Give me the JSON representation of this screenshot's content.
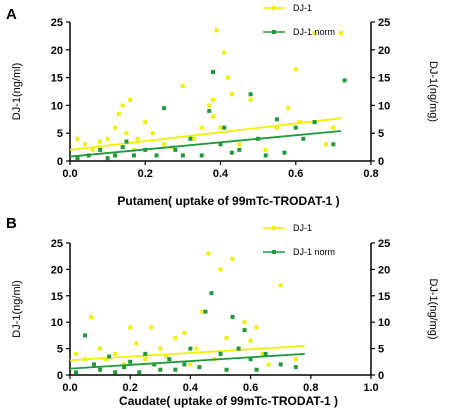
{
  "colors": {
    "dj1": "#f0f000",
    "dj1_norm": "#1e9a3a",
    "axis": "#000000"
  },
  "chart_data": [
    {
      "type": "scatter",
      "panel_label": "A",
      "xlabel": "Putamen( uptake of 99mTc-TRODAT-1 )",
      "ylabel_left": "DJ-1(ng/ml)",
      "ylabel_right": "DJ-1(ng/mg)",
      "xlim": [
        0,
        0.8
      ],
      "ylim": [
        0,
        25
      ],
      "xticks": [
        "0.0",
        "0.2",
        "0.4",
        "0.6",
        "0.8"
      ],
      "yticks": [
        "0",
        "5",
        "10",
        "15",
        "20",
        "25"
      ],
      "legend": [
        "DJ-1",
        "DJ-1 norm"
      ],
      "legend_position": "top-right",
      "series": [
        {
          "name": "DJ-1",
          "x": [
            0.02,
            0.04,
            0.06,
            0.08,
            0.1,
            0.12,
            0.13,
            0.14,
            0.15,
            0.16,
            0.17,
            0.18,
            0.2,
            0.22,
            0.25,
            0.27,
            0.3,
            0.33,
            0.35,
            0.37,
            0.38,
            0.38,
            0.39,
            0.4,
            0.41,
            0.42,
            0.43,
            0.45,
            0.48,
            0.52,
            0.55,
            0.58,
            0.6,
            0.61,
            0.65,
            0.68,
            0.7,
            0.72
          ],
          "y": [
            4.0,
            3.0,
            2.0,
            3.5,
            4.0,
            6.0,
            8.5,
            10.0,
            5.0,
            11.0,
            2.0,
            4.0,
            7.0,
            5.0,
            3.0,
            2.5,
            13.5,
            4.0,
            6.0,
            10.0,
            11.0,
            8.0,
            23.5,
            6.0,
            19.5,
            15.0,
            12.0,
            3.0,
            11.0,
            2.0,
            6.0,
            9.5,
            16.5,
            7.0,
            23.0,
            3.0,
            6.0,
            23.0
          ],
          "trendline": {
            "x": [
              0.0,
              0.72
            ],
            "y": [
              2.0,
              7.7
            ]
          }
        },
        {
          "name": "DJ-1 norm",
          "x": [
            0.02,
            0.05,
            0.08,
            0.1,
            0.12,
            0.14,
            0.15,
            0.17,
            0.2,
            0.23,
            0.25,
            0.28,
            0.3,
            0.32,
            0.35,
            0.37,
            0.38,
            0.4,
            0.41,
            0.43,
            0.45,
            0.48,
            0.5,
            0.52,
            0.55,
            0.57,
            0.6,
            0.62,
            0.65,
            0.7,
            0.73
          ],
          "y": [
            0.5,
            1.0,
            2.0,
            0.5,
            1.0,
            2.5,
            3.5,
            1.0,
            2.0,
            1.0,
            9.5,
            2.0,
            1.0,
            4.0,
            1.0,
            9.0,
            16.0,
            3.0,
            6.0,
            1.5,
            2.0,
            12.0,
            4.0,
            1.0,
            7.5,
            1.5,
            6.0,
            4.0,
            7.0,
            3.0,
            14.5
          ],
          "trendline": {
            "x": [
              0.0,
              0.72
            ],
            "y": [
              0.8,
              5.4
            ]
          }
        }
      ]
    },
    {
      "type": "scatter",
      "panel_label": "B",
      "xlabel": "Caudate( uptake of 99mTc-TRODAT-1 )",
      "ylabel_left": "DJ-1(ng/ml)",
      "ylabel_right": "DJ-1(ng/mg)",
      "xlim": [
        0,
        1.0
      ],
      "ylim": [
        0,
        25
      ],
      "xticks": [
        "0.0",
        "0.2",
        "0.4",
        "0.6",
        "0.8",
        "1.0"
      ],
      "yticks": [
        "0",
        "5",
        "10",
        "15",
        "20",
        "25"
      ],
      "legend": [
        "DJ-1",
        "DJ-1 norm"
      ],
      "legend_position": "top-right",
      "series": [
        {
          "name": "DJ-1",
          "x": [
            0.02,
            0.05,
            0.07,
            0.1,
            0.12,
            0.15,
            0.18,
            0.2,
            0.22,
            0.25,
            0.27,
            0.3,
            0.32,
            0.35,
            0.38,
            0.4,
            0.42,
            0.44,
            0.46,
            0.48,
            0.5,
            0.52,
            0.54,
            0.56,
            0.58,
            0.6,
            0.62,
            0.64,
            0.66,
            0.7,
            0.75
          ],
          "y": [
            4.0,
            3.0,
            11.0,
            5.0,
            3.0,
            4.0,
            2.0,
            9.0,
            6.0,
            3.0,
            9.0,
            5.0,
            3.5,
            7.0,
            8.0,
            2.0,
            5.0,
            12.0,
            23.0,
            3.0,
            20.0,
            7.0,
            22.0,
            5.0,
            10.0,
            6.5,
            9.0,
            4.0,
            2.0,
            17.0,
            3.0
          ],
          "trendline": {
            "x": [
              0.0,
              0.78
            ],
            "y": [
              2.8,
              5.5
            ]
          }
        },
        {
          "name": "DJ-1 norm",
          "x": [
            0.02,
            0.05,
            0.08,
            0.1,
            0.13,
            0.15,
            0.18,
            0.2,
            0.23,
            0.25,
            0.28,
            0.3,
            0.33,
            0.35,
            0.38,
            0.4,
            0.43,
            0.45,
            0.47,
            0.5,
            0.52,
            0.54,
            0.56,
            0.58,
            0.6,
            0.62,
            0.65,
            0.7,
            0.75
          ],
          "y": [
            0.5,
            7.5,
            2.0,
            1.0,
            3.5,
            0.5,
            1.5,
            2.5,
            0.5,
            4.0,
            2.0,
            1.0,
            3.0,
            1.0,
            2.0,
            5.0,
            1.5,
            12.0,
            15.5,
            4.0,
            1.0,
            11.0,
            5.0,
            8.5,
            3.0,
            1.0,
            4.0,
            2.0,
            1.5
          ],
          "trendline": {
            "x": [
              0.0,
              0.78
            ],
            "y": [
              1.2,
              4.0
            ]
          }
        }
      ]
    }
  ]
}
